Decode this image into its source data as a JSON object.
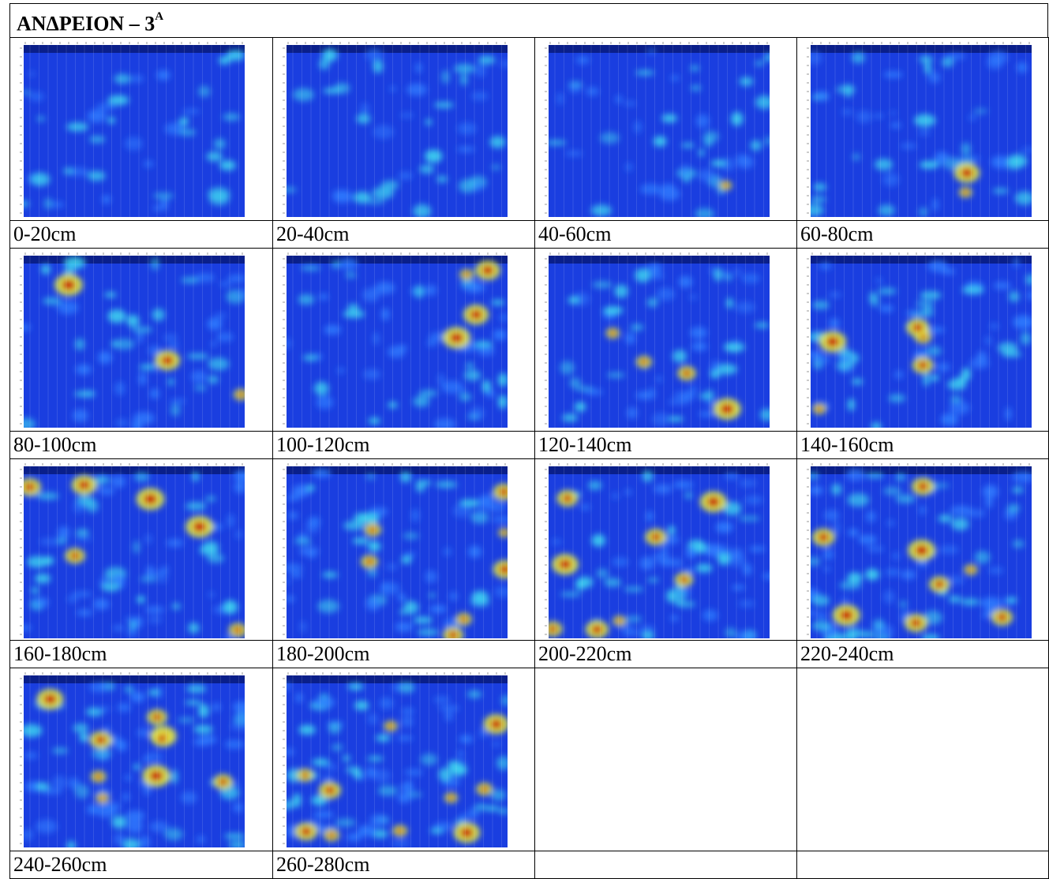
{
  "header": {
    "title": "ΑΝΔΡΕΙΟΝ – 3",
    "superscript": "Α"
  },
  "panels": [
    {
      "label": "0-20cm"
    },
    {
      "label": "20-40cm"
    },
    {
      "label": "40-60cm"
    },
    {
      "label": "60-80cm"
    },
    {
      "label": "80-100cm"
    },
    {
      "label": "100-120cm"
    },
    {
      "label": "120-140cm"
    },
    {
      "label": "140-160cm"
    },
    {
      "label": "160-180cm"
    },
    {
      "label": "180-200cm"
    },
    {
      "label": "200-220cm"
    },
    {
      "label": "220-240cm"
    },
    {
      "label": "240-260cm"
    },
    {
      "label": "260-280cm"
    }
  ]
}
